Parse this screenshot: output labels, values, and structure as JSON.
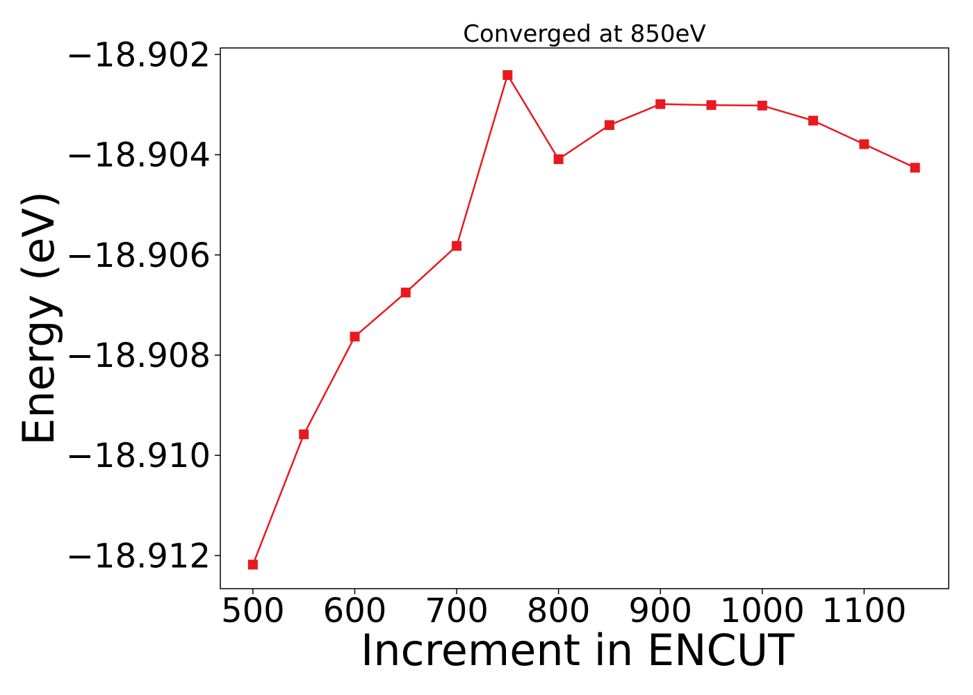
{
  "chart_data": {
    "type": "line",
    "title": "Converged at 850eV",
    "xlabel": "Increment in ENCUT",
    "ylabel": "Energy (eV)",
    "xlim": [
      468,
      1183
    ],
    "ylim": [
      -18.91266,
      -18.90187
    ],
    "xticks": [
      500,
      600,
      700,
      800,
      900,
      1000,
      1100
    ],
    "xtick_labels": [
      "500",
      "600",
      "700",
      "800",
      "900",
      "1000",
      "1100"
    ],
    "yticks": [
      -18.902,
      -18.904,
      -18.906,
      -18.908,
      -18.91,
      -18.912
    ],
    "ytick_labels": [
      "−18.902",
      "−18.904",
      "−18.906",
      "−18.908",
      "−18.910",
      "−18.912"
    ],
    "grid": false,
    "legend": "none",
    "series": [
      {
        "color": "#e8191f",
        "marker": "square",
        "x": [
          500,
          550,
          600,
          650,
          700,
          750,
          800,
          850,
          900,
          950,
          1000,
          1050,
          1100,
          1150
        ],
        "y": [
          -18.91218,
          -18.90958,
          -18.90763,
          -18.90675,
          -18.90582,
          -18.90241,
          -18.90409,
          -18.90341,
          -18.90299,
          -18.90301,
          -18.90302,
          -18.90332,
          -18.90379,
          -18.90426
        ]
      }
    ]
  }
}
